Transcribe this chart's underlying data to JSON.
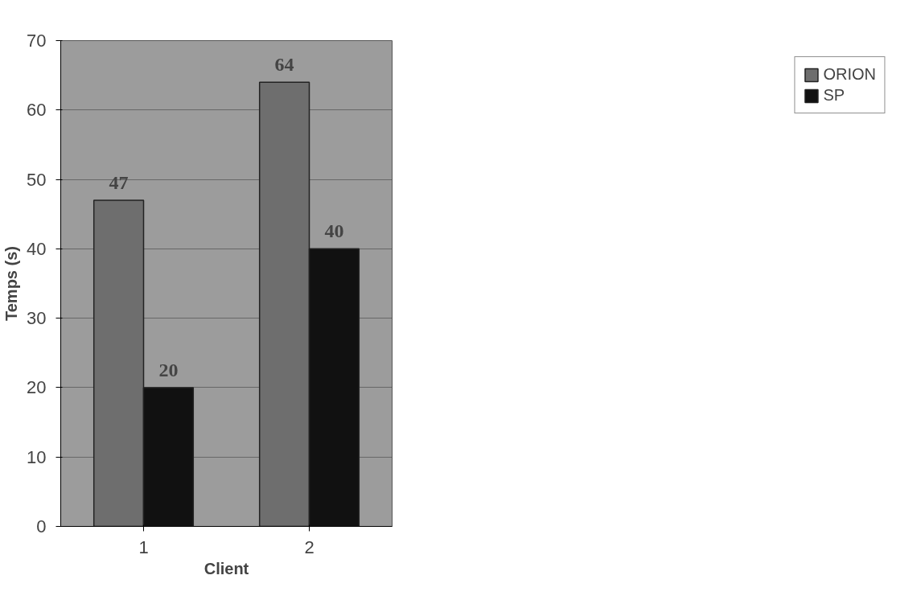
{
  "chart_data": {
    "type": "bar",
    "xlabel": "Client",
    "ylabel": "Temps (s)",
    "categories": [
      "1",
      "2"
    ],
    "series": [
      {
        "name": "ORION",
        "color": "#6e6e6e",
        "values": [
          47,
          64
        ]
      },
      {
        "name": "SP",
        "color": "#111111",
        "values": [
          20,
          40
        ]
      }
    ],
    "ylim": [
      0,
      70
    ],
    "yticks": [
      0,
      10,
      20,
      30,
      40,
      50,
      60,
      70
    ],
    "grid": "y",
    "legend": "right",
    "data_labels": true
  }
}
